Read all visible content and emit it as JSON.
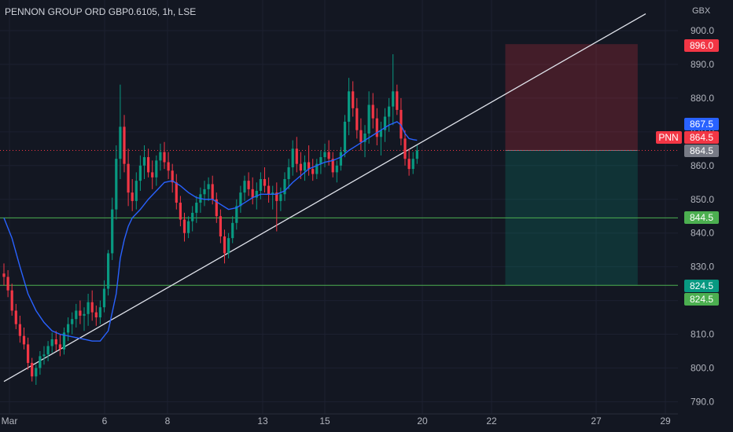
{
  "chart_data": {
    "type": "candlestick",
    "title": "PENNON GROUP ORD GBP0.6105, 1h, LSE",
    "currency": "GBX",
    "ticker": "PNN",
    "ylim": [
      787,
      905
    ],
    "y_ticks": [
      "790.0",
      "800.0",
      "810.0",
      "820.0",
      "830.0",
      "840.0",
      "850.0",
      "860.0",
      "870.0",
      "880.0",
      "890.0",
      "900.0"
    ],
    "x_ticks": [
      "Mar",
      "6",
      "8",
      "13",
      "15",
      "20",
      "22",
      "27",
      "29"
    ],
    "price_labels": [
      {
        "text": "896.0",
        "value": 896.0,
        "color": "#f23645"
      },
      {
        "text": "867.5",
        "value": 867.5,
        "color": "#2962ff"
      },
      {
        "text": "864.5",
        "value": 864.5,
        "color": "#f23645",
        "prefix": "PNN"
      },
      {
        "text": "864.5",
        "value": 864.5,
        "color": "#787b86"
      },
      {
        "text": "844.5",
        "value": 844.5,
        "color": "#4caf50"
      },
      {
        "text": "824.5",
        "value": 824.5,
        "color": "#089981"
      },
      {
        "text": "824.5",
        "value": 824.5,
        "color": "#4caf50"
      }
    ],
    "horizontal_levels": [
      844.5,
      824.5
    ],
    "last_price": 864.5,
    "trendline": [
      {
        "x": 0,
        "y": 796
      },
      {
        "x": 160,
        "y": 905
      }
    ],
    "position": {
      "entry": 864.5,
      "stop": 896.0,
      "target": 824.5,
      "x_start": 125,
      "x_end": 158
    },
    "colors": {
      "up": "#089981",
      "down": "#f23645",
      "ma": "#2962ff",
      "background": "#131722"
    },
    "candles": [
      [
        0,
        828.0,
        831.0,
        824.5,
        827.0
      ],
      [
        1,
        827.0,
        829.0,
        821.0,
        823.0
      ],
      [
        2,
        823.0,
        825.0,
        815.5,
        817.0
      ],
      [
        3,
        817.0,
        819.0,
        811.5,
        813.0
      ],
      [
        4,
        813.0,
        815.5,
        807.5,
        809.5
      ],
      [
        5,
        809.5,
        812.0,
        805.5,
        807.0
      ],
      [
        6,
        807.0,
        809.0,
        799.5,
        801.5
      ],
      [
        7,
        801.5,
        803.0,
        796.0,
        797.5
      ],
      [
        8,
        797.5,
        801.0,
        795.0,
        800.0
      ],
      [
        9,
        800.0,
        805.0,
        798.0,
        803.5
      ],
      [
        10,
        803.5,
        806.5,
        801.0,
        804.0
      ],
      [
        11,
        804.0,
        808.0,
        802.0,
        806.5
      ],
      [
        12,
        806.5,
        810.5,
        804.5,
        808.5
      ],
      [
        13,
        808.5,
        811.0,
        805.0,
        807.0
      ],
      [
        14,
        807.0,
        810.0,
        803.5,
        805.5
      ],
      [
        15,
        805.5,
        812.0,
        804.0,
        810.5
      ],
      [
        16,
        810.5,
        815.0,
        808.0,
        813.0
      ],
      [
        17,
        813.0,
        816.5,
        810.0,
        814.5
      ],
      [
        18,
        814.5,
        819.0,
        812.0,
        817.0
      ],
      [
        19,
        817.0,
        820.0,
        813.0,
        815.5
      ],
      [
        20,
        815.5,
        818.0,
        811.0,
        816.0
      ],
      [
        21,
        816.0,
        822.0,
        812.5,
        819.5
      ],
      [
        22,
        819.5,
        823.0,
        814.0,
        816.5
      ],
      [
        23,
        816.5,
        818.5,
        812.5,
        815.0
      ],
      [
        24,
        815.0,
        820.0,
        813.0,
        818.0
      ],
      [
        25,
        818.0,
        826.0,
        816.5,
        823.5
      ],
      [
        26,
        823.5,
        835.0,
        821.5,
        834.0
      ],
      [
        27,
        834.0,
        850.5,
        832.0,
        847.0
      ],
      [
        28,
        847.0,
        866.0,
        844.0,
        862.0
      ],
      [
        29,
        862.0,
        884.0,
        856.0,
        871.5
      ],
      [
        30,
        871.5,
        875.0,
        858.0,
        860.5
      ],
      [
        31,
        860.5,
        865.0,
        848.0,
        852.0
      ],
      [
        32,
        852.0,
        856.0,
        846.5,
        849.5
      ],
      [
        33,
        849.5,
        858.0,
        847.0,
        855.5
      ],
      [
        34,
        855.5,
        863.0,
        852.5,
        860.0
      ],
      [
        35,
        860.0,
        866.0,
        856.0,
        862.5
      ],
      [
        36,
        862.5,
        865.0,
        856.5,
        858.0
      ],
      [
        37,
        858.0,
        861.5,
        853.0,
        856.5
      ],
      [
        38,
        856.5,
        863.0,
        854.0,
        861.5
      ],
      [
        39,
        861.5,
        866.5,
        858.5,
        864.0
      ],
      [
        40,
        864.0,
        867.0,
        859.0,
        861.0
      ],
      [
        41,
        861.0,
        864.0,
        856.0,
        858.5
      ],
      [
        42,
        858.5,
        860.5,
        852.0,
        855.0
      ],
      [
        43,
        855.0,
        857.5,
        847.0,
        849.0
      ],
      [
        44,
        849.0,
        851.0,
        842.0,
        844.0
      ],
      [
        45,
        844.0,
        846.0,
        837.5,
        840.0
      ],
      [
        46,
        840.0,
        845.0,
        838.5,
        843.5
      ],
      [
        47,
        843.5,
        848.0,
        840.5,
        846.0
      ],
      [
        48,
        846.0,
        851.0,
        843.0,
        849.0
      ],
      [
        49,
        849.0,
        853.5,
        846.0,
        851.5
      ],
      [
        50,
        851.5,
        855.5,
        848.0,
        853.0
      ],
      [
        51,
        853.0,
        856.5,
        849.5,
        854.5
      ],
      [
        52,
        854.5,
        857.0,
        848.5,
        850.0
      ],
      [
        53,
        850.0,
        852.0,
        843.0,
        845.0
      ],
      [
        54,
        845.0,
        847.0,
        837.0,
        839.0
      ],
      [
        55,
        839.0,
        841.0,
        831.0,
        834.0
      ],
      [
        56,
        834.0,
        840.0,
        832.5,
        838.5
      ],
      [
        57,
        838.5,
        845.0,
        837.0,
        843.0
      ],
      [
        58,
        843.0,
        850.0,
        841.0,
        848.0
      ],
      [
        59,
        848.0,
        854.0,
        846.0,
        852.0
      ],
      [
        60,
        852.0,
        857.0,
        849.5,
        855.5
      ],
      [
        61,
        855.5,
        858.0,
        851.0,
        853.0
      ],
      [
        62,
        853.0,
        856.5,
        848.5,
        850.5
      ],
      [
        63,
        850.5,
        855.0,
        847.0,
        852.5
      ],
      [
        64,
        852.5,
        858.0,
        850.0,
        856.0
      ],
      [
        65,
        856.0,
        859.5,
        852.0,
        854.0
      ],
      [
        66,
        854.0,
        856.5,
        849.0,
        851.5
      ],
      [
        67,
        851.5,
        854.0,
        847.0,
        852.0
      ],
      [
        68,
        852.0,
        855.0,
        840.5,
        849.5
      ],
      [
        69,
        849.5,
        853.5,
        846.5,
        851.5
      ],
      [
        70,
        851.5,
        858.0,
        849.5,
        856.0
      ],
      [
        71,
        856.0,
        862.0,
        853.0,
        859.5
      ],
      [
        72,
        859.5,
        867.5,
        857.0,
        865.0
      ],
      [
        73,
        865.0,
        868.5,
        858.0,
        860.5
      ],
      [
        74,
        860.5,
        864.0,
        856.0,
        858.5
      ],
      [
        75,
        858.5,
        863.0,
        855.5,
        861.0
      ],
      [
        76,
        861.0,
        866.0,
        857.0,
        859.0
      ],
      [
        77,
        859.0,
        862.0,
        855.5,
        857.5
      ],
      [
        78,
        857.5,
        862.0,
        856.0,
        860.5
      ],
      [
        79,
        860.5,
        864.5,
        857.5,
        862.5
      ],
      [
        80,
        862.5,
        866.5,
        859.5,
        864.0
      ],
      [
        81,
        864.0,
        867.5,
        860.0,
        862.0
      ],
      [
        82,
        862.0,
        864.0,
        856.5,
        858.0
      ],
      [
        83,
        858.0,
        861.5,
        855.0,
        860.0
      ],
      [
        84,
        860.0,
        865.5,
        858.5,
        864.0
      ],
      [
        85,
        864.0,
        875.0,
        862.5,
        873.0
      ],
      [
        86,
        873.0,
        886.0,
        869.0,
        882.0
      ],
      [
        87,
        882.0,
        885.0,
        874.5,
        877.0
      ],
      [
        88,
        877.0,
        880.0,
        868.0,
        870.5
      ],
      [
        89,
        870.5,
        874.0,
        864.5,
        867.0
      ],
      [
        90,
        867.0,
        872.0,
        862.5,
        869.5
      ],
      [
        91,
        869.5,
        882.0,
        866.5,
        878.0
      ],
      [
        92,
        878.0,
        881.5,
        871.0,
        874.0
      ],
      [
        93,
        874.0,
        877.0,
        866.0,
        868.5
      ],
      [
        94,
        868.5,
        873.0,
        863.0,
        870.5
      ],
      [
        95,
        870.5,
        877.0,
        867.0,
        874.5
      ],
      [
        96,
        874.5,
        880.0,
        870.0,
        877.5
      ],
      [
        97,
        877.5,
        893.0,
        872.0,
        882.0
      ],
      [
        98,
        882.0,
        884.0,
        875.0,
        876.5
      ],
      [
        99,
        876.5,
        880.0,
        866.0,
        868.0
      ],
      [
        100,
        868.0,
        870.5,
        860.0,
        862.0
      ],
      [
        101,
        862.0,
        865.0,
        857.0,
        859.0
      ],
      [
        102,
        859.0,
        864.0,
        857.5,
        862.0
      ],
      [
        103,
        862.0,
        866.0,
        860.5,
        864.5
      ]
    ],
    "moving_average": [
      [
        0,
        844.5
      ],
      [
        2,
        838.5
      ],
      [
        4,
        830.0
      ],
      [
        6,
        822.0
      ],
      [
        8,
        817.0
      ],
      [
        10,
        813.5
      ],
      [
        12,
        811.0
      ],
      [
        14,
        810.0
      ],
      [
        16,
        809.5
      ],
      [
        18,
        809.0
      ],
      [
        20,
        808.5
      ],
      [
        22,
        808.0
      ],
      [
        24,
        808.0
      ],
      [
        26,
        811.0
      ],
      [
        28,
        822.0
      ],
      [
        29,
        832.5
      ],
      [
        30,
        838.0
      ],
      [
        31,
        842.0
      ],
      [
        32,
        844.5
      ],
      [
        34,
        847.0
      ],
      [
        36,
        850.0
      ],
      [
        38,
        852.5
      ],
      [
        40,
        855.0
      ],
      [
        42,
        855.5
      ],
      [
        44,
        854.0
      ],
      [
        46,
        852.0
      ],
      [
        48,
        850.5
      ],
      [
        50,
        850.0
      ],
      [
        52,
        850.0
      ],
      [
        54,
        848.5
      ],
      [
        56,
        847.0
      ],
      [
        58,
        847.5
      ],
      [
        60,
        849.0
      ],
      [
        62,
        850.5
      ],
      [
        64,
        851.5
      ],
      [
        66,
        851.5
      ],
      [
        68,
        851.5
      ],
      [
        70,
        852.5
      ],
      [
        72,
        855.0
      ],
      [
        74,
        857.0
      ],
      [
        76,
        859.0
      ],
      [
        78,
        860.0
      ],
      [
        80,
        861.0
      ],
      [
        82,
        861.5
      ],
      [
        84,
        862.5
      ],
      [
        86,
        864.5
      ],
      [
        88,
        866.0
      ],
      [
        90,
        867.5
      ],
      [
        92,
        869.0
      ],
      [
        94,
        870.5
      ],
      [
        96,
        872.0
      ],
      [
        98,
        873.0
      ],
      [
        99,
        872.0
      ],
      [
        100,
        869.5
      ],
      [
        101,
        868.0
      ],
      [
        102,
        867.7
      ],
      [
        103,
        867.5
      ]
    ]
  }
}
